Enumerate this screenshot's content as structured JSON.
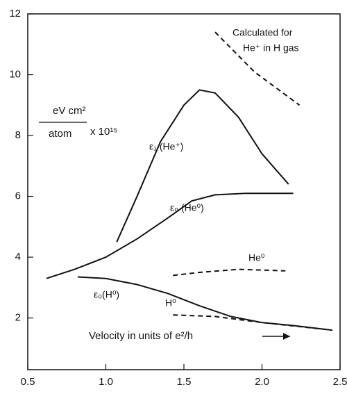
{
  "chart_data": {
    "type": "line",
    "xlabel": "Velocity in units of e²/h",
    "ylabel": [
      "eV cm²",
      "atom",
      "x 10¹⁵"
    ],
    "xlim": [
      0.5,
      2.5
    ],
    "ylim": [
      0.3,
      12
    ],
    "xticks": [
      0.5,
      {
        "value": 1,
        "label": "1.0"
      },
      1.5,
      {
        "value": 2,
        "label": "2.0"
      },
      2.5
    ],
    "yticks": [
      2,
      4,
      6,
      8,
      10,
      12
    ],
    "annotations": [
      "Calculated for",
      "He⁺ in H gas"
    ],
    "series": [
      {
        "name": "ε₁ (He⁺)",
        "color": "#111",
        "style": "solid",
        "x": [
          1.07,
          1.2,
          1.35,
          1.5,
          1.6,
          1.7,
          1.85,
          2.0,
          2.17
        ],
        "values": [
          4.5,
          6.0,
          7.8,
          9.0,
          9.5,
          9.4,
          8.6,
          7.4,
          6.4
        ]
      },
      {
        "name": "ε₀ (He⁰)",
        "color": "#111",
        "style": "solid",
        "x": [
          0.62,
          0.8,
          1.0,
          1.2,
          1.4,
          1.55,
          1.7,
          1.9,
          2.2
        ],
        "values": [
          3.3,
          3.6,
          4.0,
          4.6,
          5.3,
          5.85,
          6.05,
          6.1,
          6.1
        ]
      },
      {
        "name": "ε₀(H⁰)",
        "color": "#111",
        "style": "solid",
        "x": [
          0.82,
          1.0,
          1.2,
          1.4,
          1.6,
          1.8,
          2.0,
          2.2,
          2.45
        ],
        "values": [
          3.35,
          3.3,
          3.1,
          2.8,
          2.4,
          2.05,
          1.85,
          1.75,
          1.6
        ]
      },
      {
        "name": "He⁰",
        "color": "#111",
        "style": "dashed",
        "x": [
          1.43,
          1.6,
          1.85,
          2.15
        ],
        "values": [
          3.4,
          3.5,
          3.6,
          3.55
        ]
      },
      {
        "name": "H⁰",
        "color": "#111",
        "style": "dashed",
        "x": [
          1.43,
          1.7,
          2.0,
          2.45
        ],
        "values": [
          2.1,
          2.05,
          1.85,
          1.6
        ]
      },
      {
        "color": "#111",
        "style": "dashed",
        "x": [
          1.7,
          1.95,
          2.24
        ],
        "values": [
          11.4,
          10.1,
          9.0
        ]
      }
    ]
  }
}
